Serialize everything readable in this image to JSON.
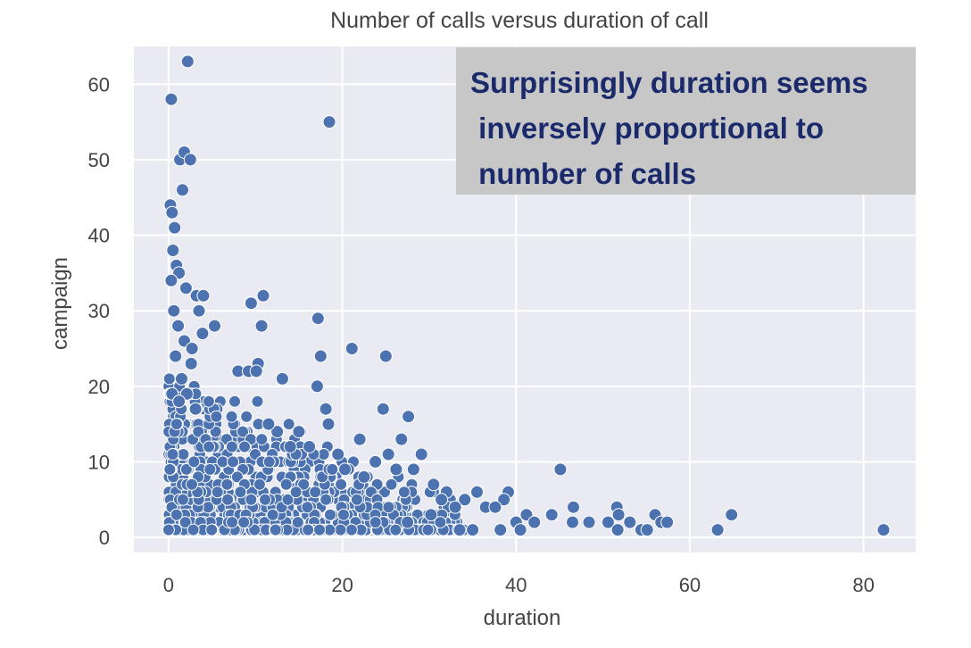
{
  "chart_data": {
    "type": "scatter",
    "title": "Number of calls versus duration of call",
    "xlabel": "duration",
    "ylabel": "campaign",
    "xlim": [
      -4,
      86
    ],
    "ylim": [
      -2,
      65
    ],
    "xticks": [
      0,
      20,
      40,
      60,
      80
    ],
    "yticks": [
      0,
      10,
      20,
      30,
      40,
      50,
      60
    ],
    "grid": true,
    "point_color": "#4c72b0",
    "background_color": "#eaeaf2",
    "points": [
      [
        0.3,
        58
      ],
      [
        2.2,
        63
      ],
      [
        1.3,
        50
      ],
      [
        1.8,
        51
      ],
      [
        2.5,
        50
      ],
      [
        1.6,
        46
      ],
      [
        0.2,
        44
      ],
      [
        0.4,
        43
      ],
      [
        0.7,
        41
      ],
      [
        0.5,
        38
      ],
      [
        0.9,
        36
      ],
      [
        1.2,
        35
      ],
      [
        0.3,
        34
      ],
      [
        2.0,
        33
      ],
      [
        3.2,
        32
      ],
      [
        4.0,
        32
      ],
      [
        3.5,
        30
      ],
      [
        3.9,
        27
      ],
      [
        5.3,
        28
      ],
      [
        0.6,
        30
      ],
      [
        1.1,
        28
      ],
      [
        1.8,
        26
      ],
      [
        2.7,
        25
      ],
      [
        0.8,
        24
      ],
      [
        2.6,
        23
      ],
      [
        1.5,
        21
      ],
      [
        2.1,
        19
      ],
      [
        0.4,
        19
      ],
      [
        1.2,
        18
      ],
      [
        3.1,
        17
      ],
      [
        9.5,
        31
      ],
      [
        10.9,
        32
      ],
      [
        10.7,
        28
      ],
      [
        17.2,
        29
      ],
      [
        17.5,
        24
      ],
      [
        21.1,
        25
      ],
      [
        25.0,
        24
      ],
      [
        8.0,
        22
      ],
      [
        9.2,
        22
      ],
      [
        10.3,
        23
      ],
      [
        10.1,
        22
      ],
      [
        13.1,
        21
      ],
      [
        17.1,
        20
      ],
      [
        18.1,
        17
      ],
      [
        18.4,
        15
      ],
      [
        24.7,
        17
      ],
      [
        27.6,
        16
      ],
      [
        26.8,
        13
      ],
      [
        22.0,
        13
      ],
      [
        29.1,
        11
      ],
      [
        25.3,
        11
      ],
      [
        28.2,
        9
      ],
      [
        45.1,
        9
      ],
      [
        39.1,
        6
      ],
      [
        38.6,
        5
      ],
      [
        35.5,
        6
      ],
      [
        32.0,
        6
      ],
      [
        34.1,
        5
      ],
      [
        36.5,
        4
      ],
      [
        37.6,
        4
      ],
      [
        40.0,
        2
      ],
      [
        41.2,
        3
      ],
      [
        42.1,
        2
      ],
      [
        44.1,
        3
      ],
      [
        46.6,
        4
      ],
      [
        46.5,
        2
      ],
      [
        48.4,
        2
      ],
      [
        50.6,
        2
      ],
      [
        51.6,
        4
      ],
      [
        51.8,
        3
      ],
      [
        51.7,
        1
      ],
      [
        53.1,
        2
      ],
      [
        54.4,
        1
      ],
      [
        55.1,
        1
      ],
      [
        56.0,
        3
      ],
      [
        56.7,
        2
      ],
      [
        57.4,
        2
      ],
      [
        63.2,
        1
      ],
      [
        64.8,
        3
      ],
      [
        82.3,
        1
      ],
      [
        18.5,
        55
      ],
      [
        15.0,
        14
      ],
      [
        14.0,
        12
      ],
      [
        12.5,
        14
      ],
      [
        11.5,
        15
      ],
      [
        16.2,
        12
      ],
      [
        19.5,
        11
      ],
      [
        20.3,
        9
      ],
      [
        22.5,
        8
      ],
      [
        23.8,
        10
      ],
      [
        26.2,
        9
      ],
      [
        30.5,
        7
      ],
      [
        31.4,
        5
      ],
      [
        33.0,
        4
      ],
      [
        30.2,
        3
      ],
      [
        27.5,
        2
      ],
      [
        35.0,
        1
      ],
      [
        33.5,
        1
      ],
      [
        38.2,
        1
      ],
      [
        40.5,
        1
      ]
    ],
    "callout": {
      "text": "Surprisingly duration seems\n inversely proportional to\n number of calls",
      "background": "#c7c7c7",
      "color": "#1b2a6b"
    }
  }
}
